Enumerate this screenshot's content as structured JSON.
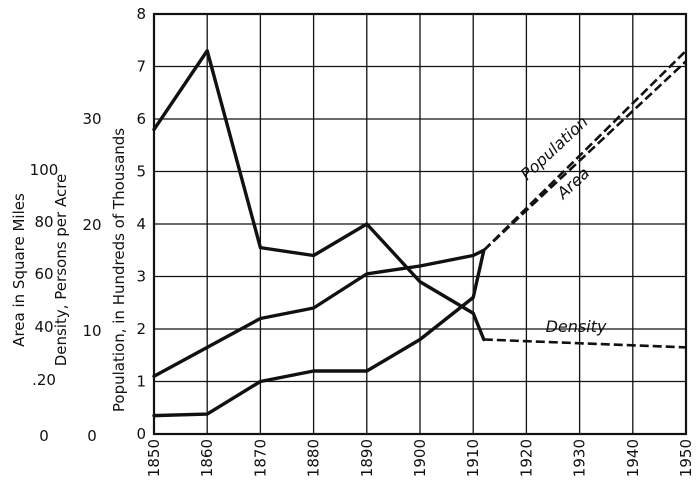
{
  "chart_data": {
    "type": "line",
    "x_axis": {
      "range": [
        1850,
        1950
      ],
      "ticks": [
        "1850",
        "1860",
        "1870",
        "1880",
        "1890",
        "1900",
        "1910",
        "1920",
        "1930",
        "1940",
        "1950"
      ]
    },
    "y_axes": {
      "population": {
        "label": "Population, in Hundreds of Thousands",
        "range": [
          0,
          8
        ],
        "ticks": [
          "0",
          "1",
          "2",
          "3",
          "4",
          "5",
          "6",
          "7",
          "8"
        ]
      },
      "density": {
        "label": "Density, Persons per Acre",
        "ticks": [
          "0",
          "10",
          "20",
          "30"
        ]
      },
      "area": {
        "label": "Area in Square Miles",
        "ticks": [
          "0",
          ".20",
          "40",
          "60",
          "80",
          "100"
        ]
      }
    },
    "grid": true,
    "series": [
      {
        "name": "Population",
        "values": [
          [
            1850,
            1.1
          ],
          [
            1860,
            1.65
          ],
          [
            1870,
            2.2
          ],
          [
            1880,
            2.4
          ],
          [
            1890,
            3.05
          ],
          [
            1900,
            3.2
          ],
          [
            1910,
            3.4
          ],
          [
            1912,
            3.5
          ]
        ],
        "projection": [
          [
            1912,
            3.5
          ],
          [
            1950,
            7.1
          ]
        ]
      },
      {
        "name": "Area",
        "values": [
          [
            1850,
            0.35
          ],
          [
            1860,
            0.38
          ],
          [
            1870,
            1.0
          ],
          [
            1880,
            1.2
          ],
          [
            1890,
            1.2
          ],
          [
            1900,
            1.8
          ],
          [
            1910,
            2.6
          ],
          [
            1912,
            3.5
          ]
        ],
        "projection": [
          [
            1912,
            3.5
          ],
          [
            1950,
            7.3
          ]
        ]
      },
      {
        "name": "Density",
        "values": [
          [
            1850,
            5.8
          ],
          [
            1860,
            7.3
          ],
          [
            1870,
            3.55
          ],
          [
            1880,
            3.4
          ],
          [
            1890,
            4.0
          ],
          [
            1900,
            2.9
          ],
          [
            1910,
            2.3
          ],
          [
            1912,
            1.8
          ]
        ],
        "projection": [
          [
            1912,
            1.8
          ],
          [
            1950,
            1.65
          ]
        ]
      }
    ]
  }
}
